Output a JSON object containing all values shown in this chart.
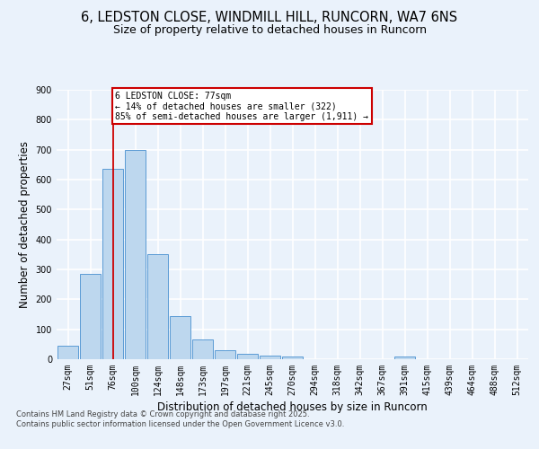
{
  "title_line1": "6, LEDSTON CLOSE, WINDMILL HILL, RUNCORN, WA7 6NS",
  "title_line2": "Size of property relative to detached houses in Runcorn",
  "xlabel": "Distribution of detached houses by size in Runcorn",
  "ylabel": "Number of detached properties",
  "bar_labels": [
    "27sqm",
    "51sqm",
    "76sqm",
    "100sqm",
    "124sqm",
    "148sqm",
    "173sqm",
    "197sqm",
    "221sqm",
    "245sqm",
    "270sqm",
    "294sqm",
    "318sqm",
    "342sqm",
    "367sqm",
    "391sqm",
    "415sqm",
    "439sqm",
    "464sqm",
    "488sqm",
    "512sqm"
  ],
  "bar_values": [
    45,
    285,
    635,
    700,
    350,
    145,
    65,
    30,
    18,
    12,
    10,
    0,
    0,
    0,
    0,
    8,
    0,
    0,
    0,
    0,
    0
  ],
  "bar_color": "#BDD7EE",
  "bar_edge_color": "#5B9BD5",
  "vline_index": 2,
  "vline_color": "#CC0000",
  "annotation_text": "6 LEDSTON CLOSE: 77sqm\n← 14% of detached houses are smaller (322)\n85% of semi-detached houses are larger (1,911) →",
  "annotation_box_color": "#CC0000",
  "annotation_bg_color": "#FFFFFF",
  "ylim": [
    0,
    900
  ],
  "yticks": [
    0,
    100,
    200,
    300,
    400,
    500,
    600,
    700,
    800,
    900
  ],
  "footer_text": "Contains HM Land Registry data © Crown copyright and database right 2025.\nContains public sector information licensed under the Open Government Licence v3.0.",
  "bg_color": "#EAF2FB",
  "grid_color": "#FFFFFF",
  "title1_fontsize": 10.5,
  "title2_fontsize": 9,
  "label_fontsize": 8.5,
  "tick_fontsize": 7,
  "annot_fontsize": 7,
  "footer_fontsize": 6
}
